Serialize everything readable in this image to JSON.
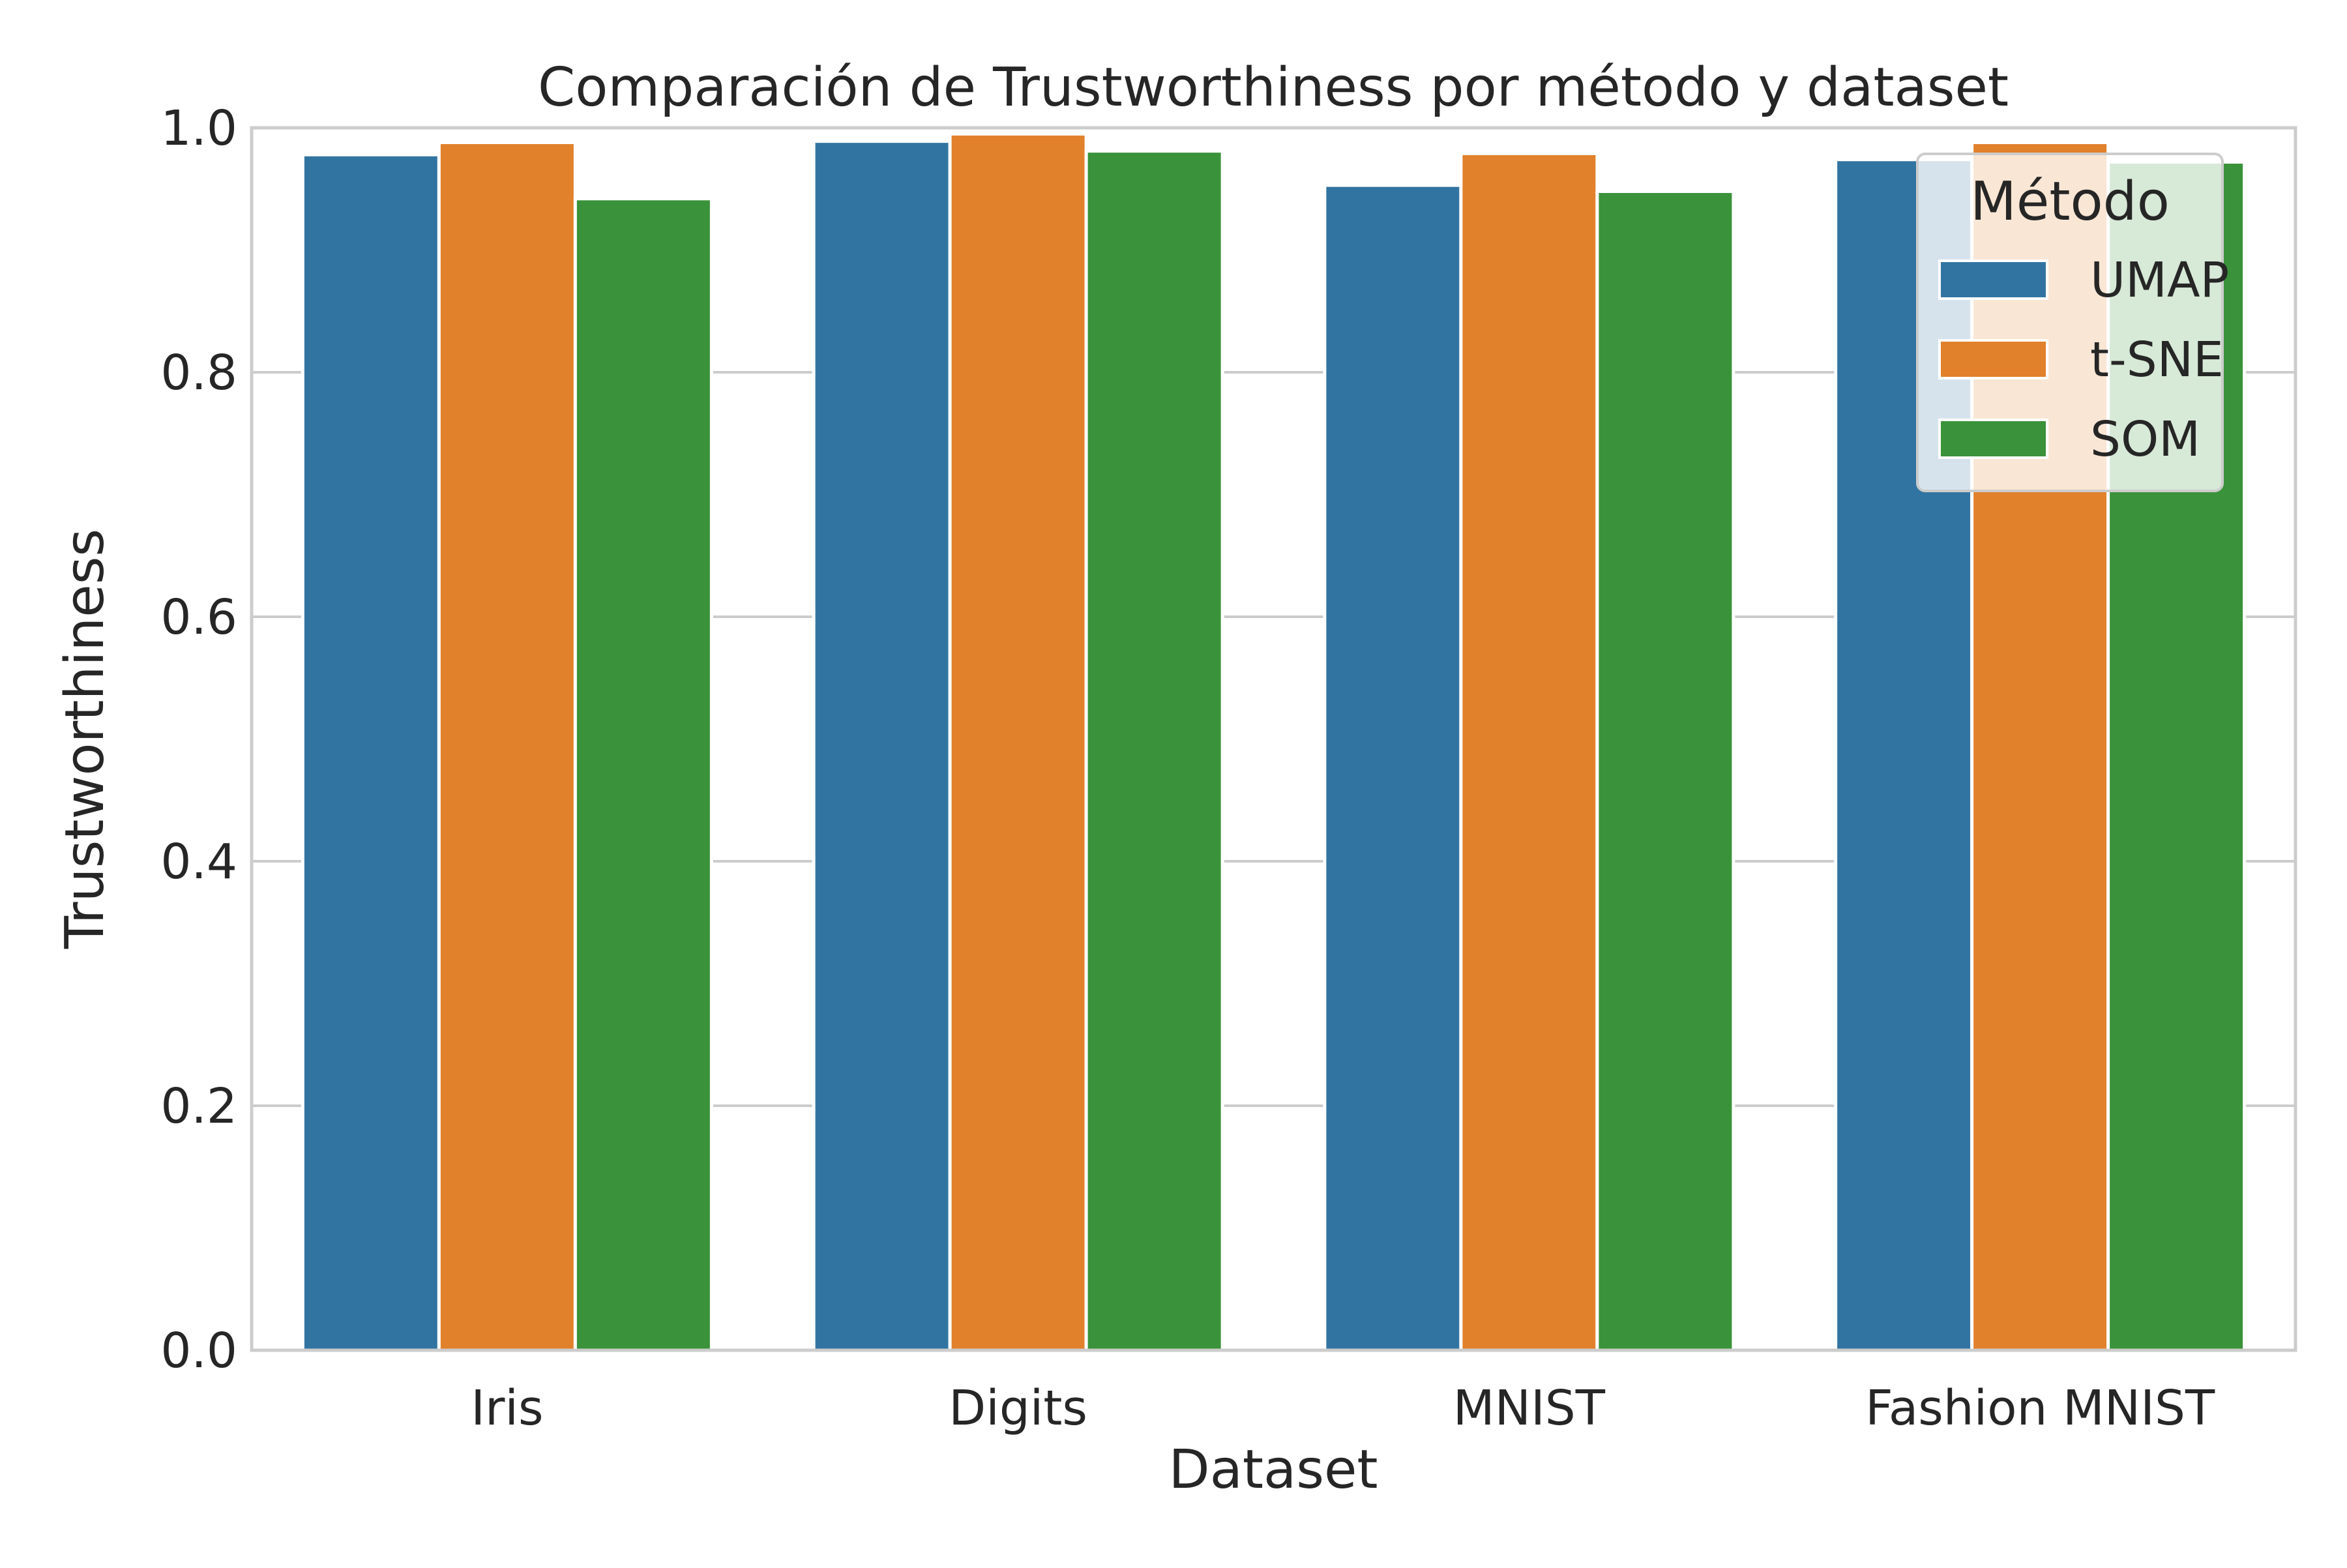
{
  "chart_data": {
    "type": "bar",
    "title": "Comparación de Trustworthiness por método y dataset",
    "xlabel": "Dataset",
    "ylabel": "Trustworthiness",
    "categories": [
      "Iris",
      "Digits",
      "MNIST",
      "Fashion MNIST"
    ],
    "ylim": [
      0,
      1.0
    ],
    "yticks": [
      "0.0",
      "0.2",
      "0.4",
      "0.6",
      "0.8",
      "1.0"
    ],
    "grid": true,
    "legend": {
      "title": "Método",
      "placement": "top-right"
    },
    "series": [
      {
        "name": "UMAP",
        "color": "#3274a1",
        "values": [
          0.978,
          0.989,
          0.953,
          0.974
        ]
      },
      {
        "name": "t-SNE",
        "color": "#e1812c",
        "values": [
          0.988,
          0.995,
          0.979,
          0.988
        ]
      },
      {
        "name": "SOM",
        "color": "#3a923a",
        "values": [
          0.942,
          0.981,
          0.948,
          0.972
        ]
      }
    ]
  }
}
